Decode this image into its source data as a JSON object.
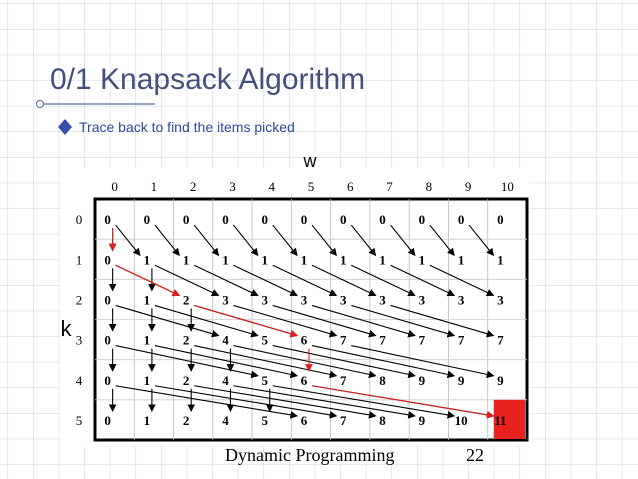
{
  "title": "0/1 Knapsack Algorithm",
  "bullet": "Trace back to find the items picked",
  "table": {
    "w_label": "w",
    "k_label": "k",
    "column_headers": [
      "0",
      "1",
      "2",
      "3",
      "4",
      "5",
      "6",
      "7",
      "8",
      "9",
      "10"
    ],
    "row_headers": [
      "0",
      "1",
      "2",
      "3",
      "4",
      "5"
    ],
    "rows": [
      [
        "0",
        "0",
        "0",
        "0",
        "0",
        "0",
        "0",
        "0",
        "0",
        "0",
        "0"
      ],
      [
        "0",
        "1",
        "1",
        "1",
        "1",
        "1",
        "1",
        "1",
        "1",
        "1",
        "1"
      ],
      [
        "0",
        "1",
        "2",
        "3",
        "3",
        "3",
        "3",
        "3",
        "3",
        "3",
        "3"
      ],
      [
        "0",
        "1",
        "2",
        "4",
        "5",
        "6",
        "7",
        "7",
        "7",
        "7",
        "7"
      ],
      [
        "0",
        "1",
        "2",
        "4",
        "5",
        "6",
        "7",
        "8",
        "9",
        "9",
        "9"
      ],
      [
        "0",
        "1",
        "2",
        "4",
        "5",
        "6",
        "7",
        "8",
        "9",
        "10",
        "11"
      ]
    ]
  },
  "footer": {
    "text": "Dynamic Programming",
    "page": "22"
  }
}
